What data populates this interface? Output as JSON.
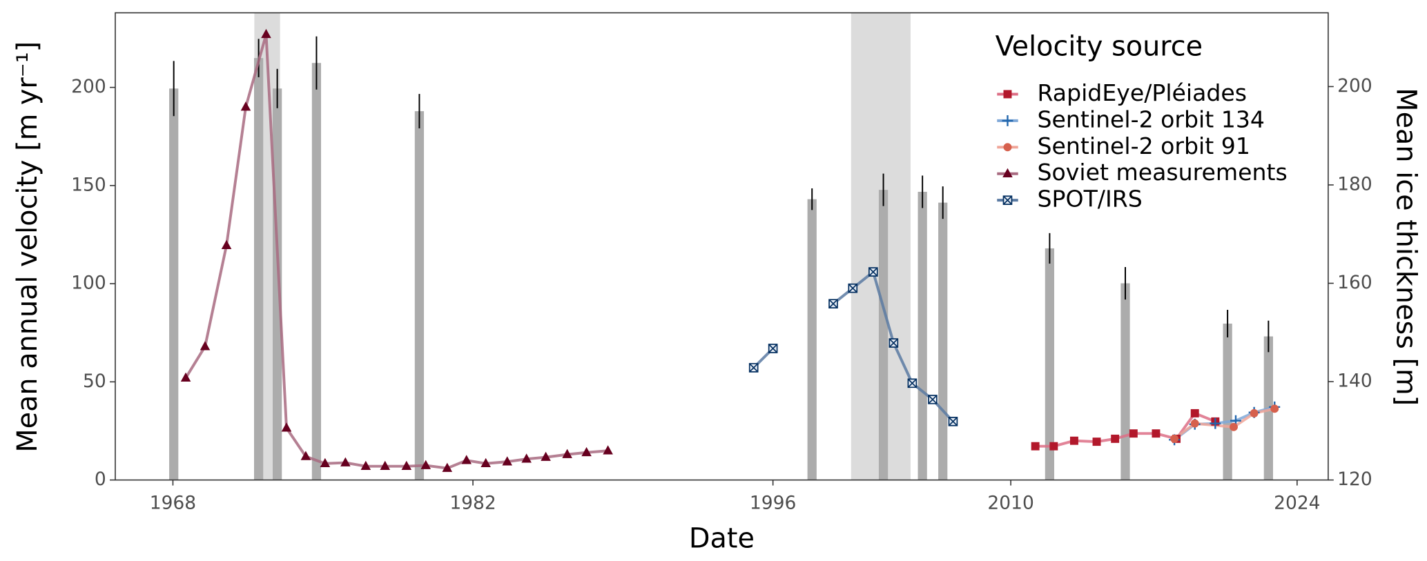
{
  "chart_data": {
    "type": "line",
    "x_label": "Date",
    "y_label": "Mean annual velocity [m yr⁻¹]",
    "y2_label": "Mean ice thickness [m]",
    "xlim": [
      1965.3,
      2025.5
    ],
    "xticks": [
      1968,
      1982,
      1996,
      2010,
      2024
    ],
    "ylim": [
      0,
      238
    ],
    "yticks": [
      0,
      50,
      100,
      150,
      200
    ],
    "y2lim": [
      120,
      215
    ],
    "y2ticks": [
      120,
      140,
      160,
      180,
      200
    ],
    "grid": false,
    "legend_title": "Velocity source",
    "legend_position": "top-right",
    "highlight_periods": [
      [
        1971.8,
        1973.0
      ],
      [
        2000.6,
        2004.1
      ]
    ],
    "highlight_color": "#dcdcdc",
    "bars": {
      "axis": "y2",
      "color": "#acacac",
      "x": [
        1968.04,
        1972.0,
        1972.87,
        1974.7,
        1979.5,
        1998.3,
        2002.5,
        2004.8,
        2006.0,
        2011.9,
        2015.6,
        2020.6,
        2022.6
      ],
      "values": [
        199.6,
        205.8,
        199.6,
        204.8,
        195.0,
        177.1,
        179.0,
        178.6,
        176.4,
        167.1,
        160.0,
        151.8,
        149.2
      ],
      "errors": [
        5.6,
        3.9,
        4.0,
        5.4,
        3.5,
        2.2,
        3.3,
        3.3,
        3.3,
        3.1,
        3.3,
        2.8,
        3.2
      ]
    },
    "series": [
      {
        "name": "RapidEye/Pléiades",
        "color": "#b2182b",
        "line_color": "#dd6f86",
        "marker": "square",
        "x": [
          2011.2,
          2012.1,
          2013.1,
          2014.2,
          2015.1,
          2016.0,
          2017.1,
          2018.1,
          2019.0,
          2020.0
        ],
        "values": [
          17.2,
          17.2,
          20.0,
          19.5,
          21.0,
          23.7,
          23.7,
          21.0,
          34.0,
          29.8
        ]
      },
      {
        "name": "Sentinel-2 orbit 134",
        "color": "#2166ac",
        "line_color": "#7fa8d8",
        "marker": "plus",
        "x": [
          2018.0,
          2019.0,
          2020.0,
          2021.0,
          2021.9,
          2022.9
        ],
        "values": [
          20.5,
          28.4,
          28.8,
          30.2,
          34.4,
          37.2
        ]
      },
      {
        "name": "Sentinel-2 orbit 91",
        "color": "#d6604d",
        "line_color": "#f0a598",
        "marker": "circle",
        "x": [
          2018.0,
          2019.0,
          2020.9,
          2021.9,
          2022.9
        ],
        "values": [
          21.0,
          28.8,
          27.0,
          34.0,
          36.3
        ]
      },
      {
        "name": "Soviet measurements",
        "color": "#67001f",
        "line_color": "#a86a80",
        "marker": "triangle",
        "x": [
          1968.6,
          1969.5,
          1970.5,
          1971.4,
          1972.35,
          1973.3,
          1974.2,
          1975.1,
          1976.05,
          1977.0,
          1977.9,
          1978.9,
          1979.8,
          1980.8,
          1981.7,
          1982.6,
          1983.6,
          1984.5,
          1985.4,
          1986.4,
          1987.3,
          1988.3
        ],
        "values": [
          52,
          68,
          119.5,
          190,
          227,
          26.5,
          12,
          8.4,
          8.8,
          7,
          7,
          7,
          7.4,
          6,
          10,
          8.4,
          9.3,
          10.7,
          11.6,
          13,
          14,
          14.9
        ]
      },
      {
        "name": "SPOT/IRS",
        "color": "#053061",
        "line_color": "#5a7aa2",
        "marker": "square-x",
        "x": [
          1995.1,
          1996.0,
          1997.8,
          1999.55,
          2000.7,
          2001.9,
          2003.1,
          2004.2,
          2005.4,
          2006.6
        ],
        "values": [
          57.2,
          67,
          null,
          89.8,
          97.7,
          106,
          69.8,
          49.3,
          41,
          29.8
        ]
      }
    ]
  }
}
